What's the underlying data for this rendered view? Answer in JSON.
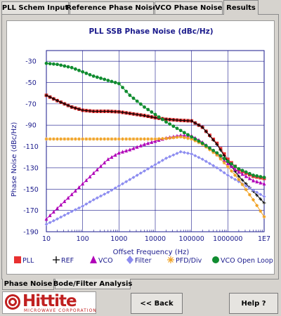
{
  "tabs": [
    {
      "label": "PLL Schem Input",
      "active": false
    },
    {
      "label": "Reference Phase Noise",
      "active": false
    },
    {
      "label": "VCO Phase Noise",
      "active": false
    },
    {
      "label": "Results",
      "active": true
    }
  ],
  "bottom_tabs": [
    {
      "label": "Phase Noise",
      "active": true
    },
    {
      "label": "Bode/Filter Analysis",
      "active": false
    }
  ],
  "logo": {
    "name": "Hittite",
    "subtitle": "MICROWAVE CORPORATION"
  },
  "buttons": {
    "back": "<< Back",
    "help": "Help ?"
  },
  "chart_data": {
    "type": "line",
    "title": "PLL SSB Phase Noise (dBc/Hz)",
    "xlabel": "Offset Frequency (Hz)",
    "ylabel": "Phase Noise (dBc/Hz)",
    "xscale": "log",
    "xlim": [
      10,
      10000000
    ],
    "ylim": [
      -190,
      -20
    ],
    "x_tick_labels": [
      "10",
      "100",
      "1000",
      "10000",
      "100000",
      "1000000",
      "1E7"
    ],
    "y_tick_labels": [
      "-30",
      "-50",
      "-70",
      "-90",
      "-110",
      "-130",
      "-150",
      "-170",
      "-190"
    ],
    "y_ticks": [
      -30,
      -50,
      -70,
      -90,
      -110,
      -130,
      -150,
      -170,
      -190
    ],
    "grid": true,
    "legend_position": "bottom",
    "series": [
      {
        "name": "PLL",
        "color": "#e83030",
        "marker": "square",
        "x": [
          10,
          20,
          50,
          100,
          200,
          500,
          1000,
          2000,
          5000,
          10000,
          20000,
          50000,
          100000,
          200000,
          500000,
          1000000,
          2000000,
          5000000,
          10000000
        ],
        "y": [
          -62,
          -67,
          -73,
          -76,
          -77,
          -77,
          -77.5,
          -79,
          -81,
          -83,
          -84.5,
          -85.5,
          -86,
          -92,
          -107,
          -122,
          -132,
          -138,
          -140
        ]
      },
      {
        "name": "REF",
        "color": "#000000",
        "marker": "plus",
        "x": [
          10,
          20,
          50,
          100,
          200,
          500,
          1000,
          2000,
          5000,
          10000,
          20000,
          50000,
          100000,
          200000,
          500000,
          1000000,
          2000000,
          5000000,
          10000000
        ],
        "y": [
          -62,
          -67,
          -73,
          -76,
          -77,
          -77,
          -77.5,
          -79,
          -81,
          -83,
          -84.5,
          -85.5,
          -86,
          -92,
          -108,
          -124,
          -138,
          -152,
          -163
        ]
      },
      {
        "name": "VCO",
        "color": "#b000b8",
        "marker": "triangle",
        "x": [
          10,
          20,
          50,
          100,
          200,
          500,
          1000,
          2000,
          5000,
          10000,
          20000,
          50000,
          100000,
          200000,
          500000,
          1000000,
          2000000,
          5000000,
          10000000
        ],
        "y": [
          -178,
          -168,
          -155,
          -145,
          -135,
          -122,
          -116,
          -113,
          -108,
          -105,
          -102,
          -99.5,
          -100,
          -106,
          -117,
          -126,
          -134,
          -142,
          -145
        ]
      },
      {
        "name": "Filter",
        "color": "#8c8cf0",
        "marker": "diamond",
        "x": [
          10,
          20,
          50,
          100,
          200,
          500,
          1000,
          2000,
          5000,
          10000,
          20000,
          50000,
          100000,
          200000,
          500000,
          1000000,
          2000000,
          5000000,
          10000000
        ],
        "y": [
          -183,
          -178,
          -171,
          -166,
          -160,
          -153,
          -147,
          -141,
          -133,
          -127,
          -121,
          -115,
          -117,
          -122,
          -130,
          -137,
          -143,
          -151,
          -157
        ]
      },
      {
        "name": "PFD/Div",
        "color": "#f0a020",
        "marker": "asterisk",
        "x": [
          10,
          20,
          50,
          100,
          200,
          500,
          1000,
          2000,
          5000,
          10000,
          20000,
          50000,
          100000,
          200000,
          500000,
          1000000,
          2000000,
          5000000,
          10000000
        ],
        "y": [
          -103,
          -103,
          -103,
          -103,
          -103,
          -103,
          -103,
          -103,
          -103,
          -103,
          -102.5,
          -101,
          -103,
          -108,
          -118,
          -129,
          -141,
          -160,
          -176
        ]
      },
      {
        "name": "VCO Open Loop",
        "color": "#108c30",
        "marker": "circle",
        "x": [
          10,
          20,
          50,
          100,
          200,
          500,
          1000,
          2000,
          5000,
          10000,
          20000,
          50000,
          100000,
          200000,
          500000,
          1000000,
          2000000,
          5000000,
          10000000
        ],
        "y": [
          -32,
          -33,
          -36,
          -40,
          -44,
          -48,
          -51,
          -62,
          -73,
          -80,
          -87,
          -95,
          -101,
          -107,
          -116,
          -124,
          -131,
          -137,
          -139
        ]
      }
    ]
  }
}
